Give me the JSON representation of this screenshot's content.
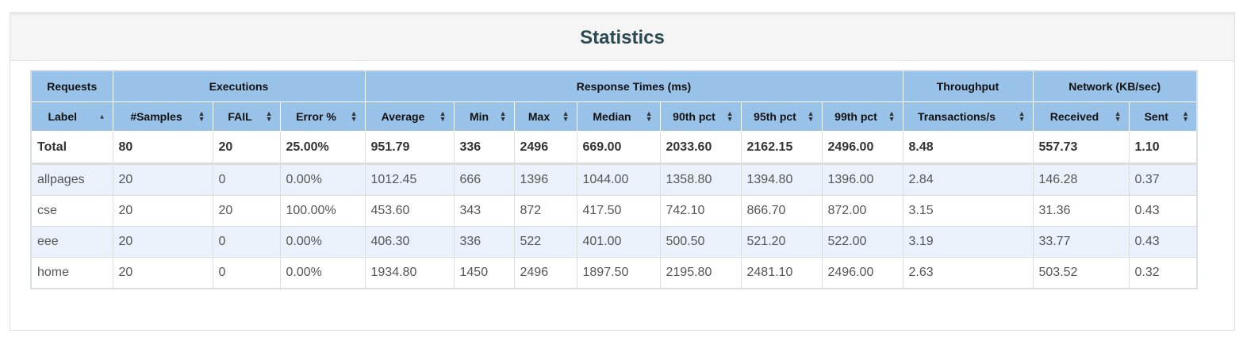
{
  "title": "Statistics",
  "groups": [
    "Requests",
    "Executions",
    "Response Times (ms)",
    "Throughput",
    "Network (KB/sec)"
  ],
  "columns": [
    "Label",
    "#Samples",
    "FAIL",
    "Error %",
    "Average",
    "Min",
    "Max",
    "Median",
    "90th pct",
    "95th pct",
    "99th pct",
    "Transactions/s",
    "Received",
    "Sent"
  ],
  "total": [
    "Total",
    "80",
    "20",
    "25.00%",
    "951.79",
    "336",
    "2496",
    "669.00",
    "2033.60",
    "2162.15",
    "2496.00",
    "8.48",
    "557.73",
    "1.10"
  ],
  "rows": [
    [
      "allpages",
      "20",
      "0",
      "0.00%",
      "1012.45",
      "666",
      "1396",
      "1044.00",
      "1358.80",
      "1394.80",
      "1396.00",
      "2.84",
      "146.28",
      "0.37"
    ],
    [
      "cse",
      "20",
      "20",
      "100.00%",
      "453.60",
      "343",
      "872",
      "417.50",
      "742.10",
      "866.70",
      "872.00",
      "3.15",
      "31.36",
      "0.43"
    ],
    [
      "eee",
      "20",
      "0",
      "0.00%",
      "406.30",
      "336",
      "522",
      "401.00",
      "500.50",
      "521.20",
      "522.00",
      "3.19",
      "33.77",
      "0.43"
    ],
    [
      "home",
      "20",
      "0",
      "0.00%",
      "1934.80",
      "1450",
      "2496",
      "1897.50",
      "2195.80",
      "2481.10",
      "2496.00",
      "2.63",
      "503.52",
      "0.32"
    ]
  ],
  "icons": {
    "sort_asc": "sort-asc-icon",
    "sort_both": "sort-icon"
  },
  "colors": {
    "header_bg": "#99c2e8",
    "alt_row": "#eaf1fa",
    "title": "#2c4a52"
  }
}
